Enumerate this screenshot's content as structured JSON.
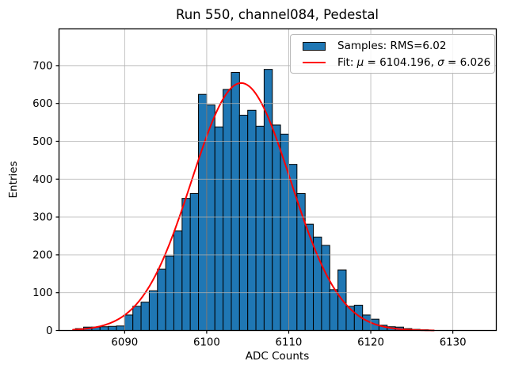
{
  "title": "Run 550, channel084, Pedestal",
  "x_axis_label": "ADC Counts",
  "y_axis_label": "Entries",
  "legend": {
    "samples_label": "Samples: RMS=6.02",
    "fit_parts": {
      "prefix": "Fit: ",
      "mu_symbol": "μ",
      "mu_value": " = 6104.196, ",
      "sigma_symbol": "σ",
      "sigma_value": " = 6.026"
    }
  },
  "colors": {
    "bar_fill": "#1f77b4",
    "bar_edge": "#000000",
    "fit_line": "#ff0000",
    "grid": "#b0b0b0",
    "spine": "#000000",
    "text": "#000000"
  },
  "chart_data": {
    "type": "bar",
    "subtype": "histogram",
    "title": "Run 550, channel084, Pedestal",
    "xlabel": "ADC Counts",
    "ylabel": "Entries",
    "bin_start": 6084,
    "bin_width": 1,
    "values": [
      5,
      9,
      9,
      10,
      11,
      12,
      41,
      64,
      75,
      105,
      162,
      197,
      263,
      349,
      362,
      624,
      596,
      538,
      637,
      682,
      569,
      582,
      540,
      690,
      543,
      519,
      439,
      362,
      281,
      247,
      225,
      108,
      160,
      64,
      67,
      41,
      30,
      14,
      10,
      9,
      5,
      3,
      2
    ],
    "samples_rms": 6.02,
    "fit_curve": {
      "shape": "gaussian",
      "mu": 6104.196,
      "sigma": 6.026,
      "amplitude": 654,
      "x_range": [
        6083.7,
        6127.9
      ]
    },
    "x_ticks": [
      6090,
      6100,
      6110,
      6120,
      6130
    ],
    "y_ticks": [
      0,
      100,
      200,
      300,
      400,
      500,
      600,
      700
    ],
    "xlim": [
      6082.0,
      6135.3
    ],
    "ylim": [
      0,
      797
    ],
    "grid": true,
    "grid_above_data": true,
    "legend_position": "upper right"
  }
}
